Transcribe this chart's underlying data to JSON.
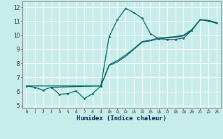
{
  "xlabel": "Humidex (Indice chaleur)",
  "bg_color": "#c8ece9",
  "grid_color": "#ffffff",
  "line_color": "#006666",
  "xlim": [
    -0.5,
    23.5
  ],
  "ylim": [
    4.8,
    12.4
  ],
  "yticks": [
    5,
    6,
    7,
    8,
    9,
    10,
    11,
    12
  ],
  "xticks": [
    0,
    1,
    2,
    3,
    4,
    5,
    6,
    7,
    8,
    9,
    10,
    11,
    12,
    13,
    14,
    15,
    16,
    17,
    18,
    19,
    20,
    21,
    22,
    23
  ],
  "line_zigzag_x": [
    3,
    4,
    5,
    6,
    7,
    8,
    9
  ],
  "line_zigzag_y": [
    6.3,
    5.8,
    5.85,
    6.05,
    5.5,
    5.85,
    6.4
  ],
  "line_main_x": [
    0,
    1,
    2,
    3,
    9,
    10,
    11,
    12,
    13,
    14,
    15,
    16,
    17,
    18,
    19,
    20,
    21,
    22,
    23
  ],
  "line_main_y": [
    6.4,
    6.3,
    6.1,
    6.3,
    6.4,
    9.9,
    11.1,
    11.9,
    11.6,
    11.2,
    10.1,
    9.75,
    9.7,
    9.7,
    9.8,
    10.35,
    11.1,
    11.0,
    10.85
  ],
  "line_trend1_x": [
    0,
    9,
    10,
    11,
    12,
    13,
    14,
    15,
    16,
    17,
    18,
    19,
    20,
    21,
    22,
    23
  ],
  "line_trend1_y": [
    6.4,
    6.4,
    7.85,
    8.1,
    8.5,
    9.0,
    9.5,
    9.6,
    9.75,
    9.8,
    9.85,
    9.95,
    10.35,
    11.1,
    11.05,
    10.85
  ],
  "line_trend2_x": [
    0,
    9,
    10,
    11,
    12,
    13,
    14,
    15,
    16,
    17,
    18,
    19,
    20,
    21,
    22,
    23
  ],
  "line_trend2_y": [
    6.4,
    6.4,
    7.9,
    8.2,
    8.6,
    9.05,
    9.55,
    9.65,
    9.8,
    9.85,
    9.9,
    10.0,
    10.4,
    11.1,
    11.05,
    10.9
  ]
}
